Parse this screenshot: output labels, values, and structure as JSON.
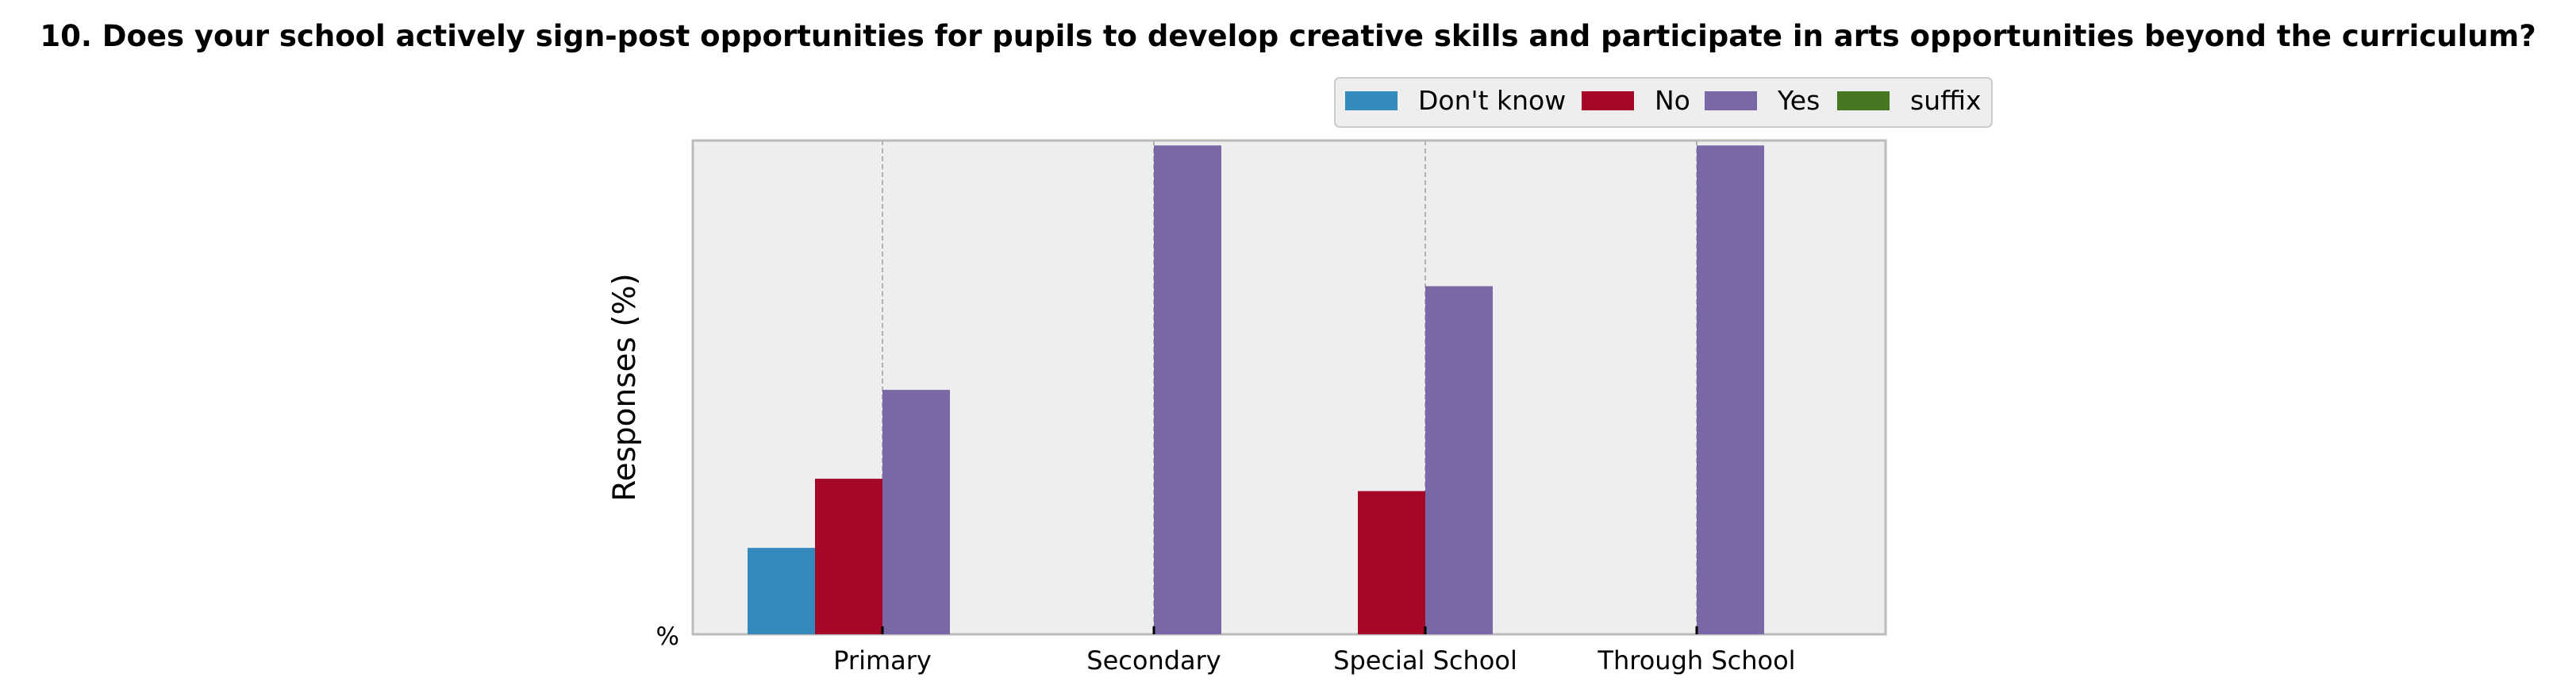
{
  "chart_data": {
    "type": "bar",
    "title": "10. Does your school actively sign-post opportunities for pupils to develop creative skills and participate in arts opportunities beyond the curriculum?",
    "xlabel": "",
    "ylabel": "Responses (%)",
    "y_tick_label": "%",
    "categories": [
      "Primary",
      "Secondary",
      "Special School",
      "Through School"
    ],
    "ylim": [
      0,
      100
    ],
    "grid": true,
    "legend_position": "top-right",
    "series": [
      {
        "name": "Don't know",
        "color": "#348ABD",
        "values": [
          17.5,
          0,
          0,
          0
        ]
      },
      {
        "name": "No",
        "color": "#A60628",
        "values": [
          31.5,
          0,
          29,
          0
        ]
      },
      {
        "name": "Yes",
        "color": "#7A68A6",
        "values": [
          49.5,
          99,
          70.5,
          99
        ]
      },
      {
        "name": "suffix",
        "color": "#467821",
        "values": [
          0,
          0,
          0,
          0
        ]
      }
    ]
  }
}
